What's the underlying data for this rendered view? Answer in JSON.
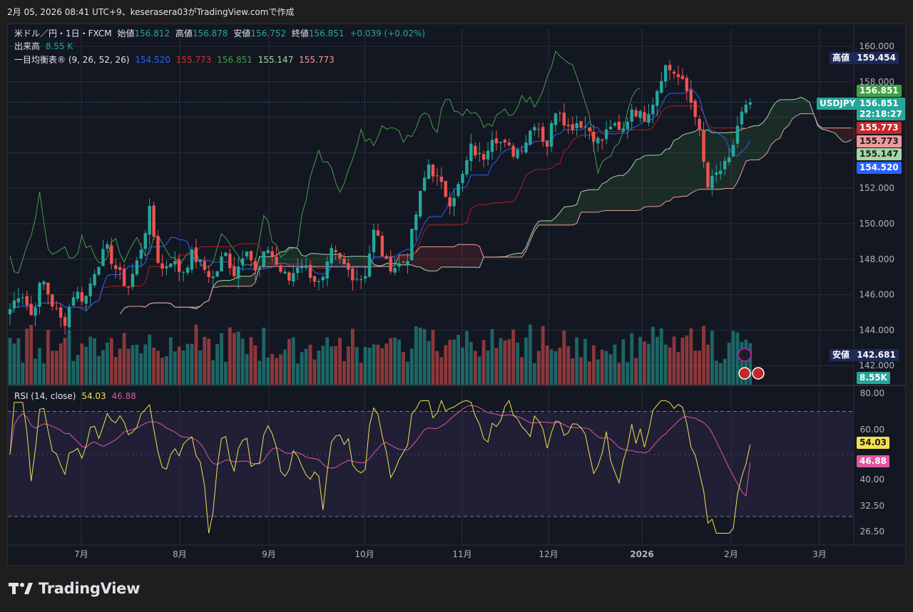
{
  "header": {
    "text": "2月 05, 2026 08:41 UTC+9、keserasera03がTradingView.comで作成"
  },
  "legend": {
    "symbol": "米ドル／円・1日・FXCM",
    "open_label": "始値",
    "open": "156.812",
    "high_label": "高値",
    "high": "156.878",
    "low_label": "安値",
    "low": "156.752",
    "close_label": "終値",
    "close": "156.851",
    "change": "+0.039 (+0.02%)",
    "volume_label": "出来高",
    "volume": "8.55 K",
    "ichimoku_label": "一目均衡表® (9, 26, 52, 26)",
    "ichimoku_values": [
      "154.520",
      "155.773",
      "156.851",
      "155.147",
      "155.773"
    ],
    "rsi_label": "RSI (14, close)",
    "rsi_value": "54.03",
    "rsi_ma_value": "46.88"
  },
  "price_tags": {
    "high_label": "高値",
    "high_value": "159.454",
    "close_value": "156.851",
    "symbol": "USDJPY",
    "symbol_price": "156.851",
    "countdown": "22:18:27",
    "kijun": "155.773",
    "span_b": "155.773",
    "span_a": "155.147",
    "tenkan": "154.520",
    "low_label": "安値",
    "low_value": "142.681",
    "volume": "8.55K",
    "rsi": "54.03",
    "rsi_ma": "46.88"
  },
  "colors": {
    "up": "#26a69a",
    "down": "#ef5350",
    "tenkan": "#2962ff",
    "kijun": "#b71c1c",
    "chikou": "#43a047",
    "span_a": "#a5d6a7",
    "span_b": "#ef9a9a",
    "rsi": "#f4e04d",
    "rsi_ma": "#e056a0"
  },
  "footer": {
    "brand": "TradingView"
  },
  "chart_data": {
    "type": "candlestick",
    "symbol": "USDJPY",
    "timeframe": "1日",
    "x_ticks": [
      "7月",
      "8月",
      "9月",
      "10月",
      "11月",
      "12月",
      "2026",
      "2月",
      "3月"
    ],
    "price_ticks": [
      "160.000",
      "158.000",
      "156.000",
      "154.000",
      "152.000",
      "150.000",
      "148.000",
      "146.000",
      "144.000",
      "142.000"
    ],
    "ylim": [
      141.0,
      161.0
    ],
    "rsi_ticks": [
      "80.00",
      "60.00",
      "40.00",
      "32.50",
      "26.50"
    ],
    "rsi_levels": [
      70,
      30
    ],
    "price_series": [
      145.2,
      146.3,
      144.8,
      146.9,
      145.4,
      144.3,
      146.2,
      145.7,
      147.6,
      148.6,
      147.3,
      146.4,
      148.1,
      150.7,
      147.3,
      148.0,
      147.2,
      148.3,
      147.5,
      146.9,
      148.4,
      147.1,
      148.9,
      147.0,
      148.7,
      147.5,
      146.8,
      147.9,
      147.2,
      146.4,
      148.4,
      147.7,
      147.1,
      146.9,
      149.8,
      147.7,
      147.6,
      148.0,
      151.0,
      153.4,
      152.3,
      151.3,
      152.3,
      154.3,
      153.6,
      155.1,
      154.4,
      154.0,
      154.6,
      155.9,
      154.3,
      156.8,
      155.4,
      155.8,
      155.3,
      154.5,
      155.6,
      155.0,
      156.6,
      155.9,
      157.0,
      158.9,
      158.5,
      157.6,
      156.1,
      152.0,
      152.9,
      153.4,
      156.0,
      156.85
    ],
    "ichimoku": {
      "tenkan_last": 154.52,
      "kijun_last": 155.773,
      "chikou_last": 156.851,
      "span_a_last": 155.147,
      "span_b_last": 155.773
    },
    "volume_last": "8.55K",
    "rsi_last": 54.03,
    "rsi_ma_last": 46.88
  }
}
